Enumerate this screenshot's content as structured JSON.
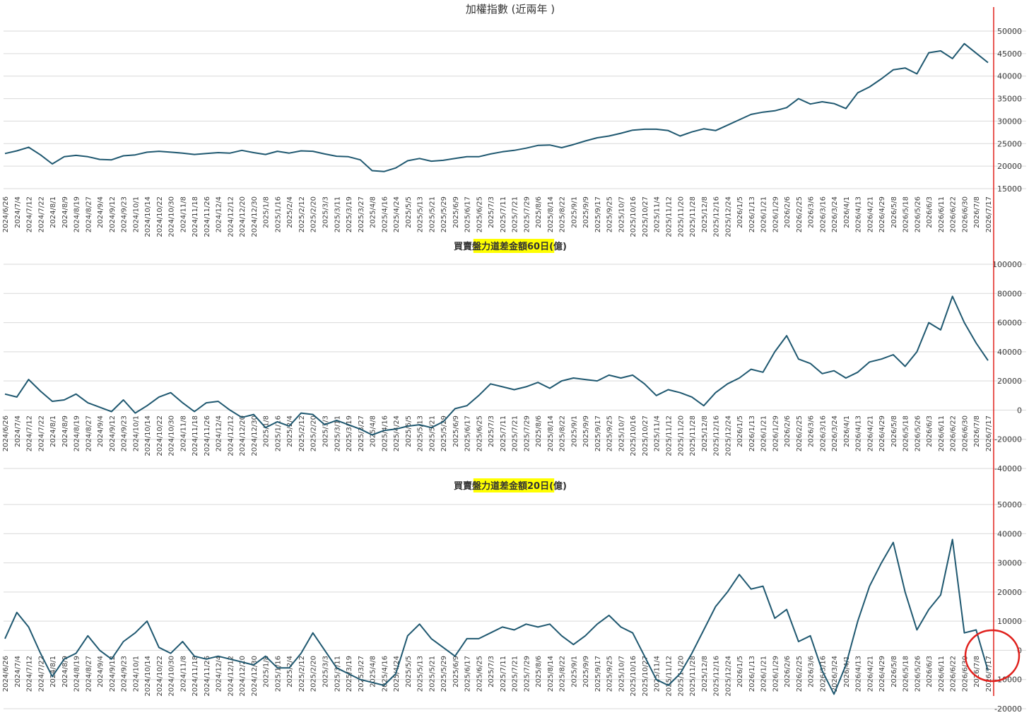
{
  "colors": {
    "line": "#1f5870",
    "grid": "#d9d9d9",
    "tick_text": "#3a3a3a",
    "marker": "#e0201c",
    "title_highlight": "#ffff00",
    "background": "#ffffff"
  },
  "chart_data": [
    {
      "type": "line",
      "title": "加權指數 (近兩年 )",
      "title_highlight": false,
      "xlabel": "",
      "ylabel": "",
      "ylim": [
        15000,
        50000
      ],
      "yticks": [
        15000,
        20000,
        25000,
        30000,
        35000,
        40000,
        45000,
        50000
      ],
      "grid": true,
      "legend": "none",
      "x_tick_labels": [
        "2024/6/26",
        "2024/7/4",
        "2024/7/12",
        "2024/7/22",
        "2024/8/1",
        "2024/8/9",
        "2024/8/19",
        "2024/8/27",
        "2024/9/4",
        "2024/9/12",
        "2024/9/23",
        "2024/10/1",
        "2024/10/14",
        "2024/10/22",
        "2024/10/30",
        "2024/11/8",
        "2024/11/18",
        "2024/11/26",
        "2024/12/4",
        "2024/12/12",
        "2024/12/20",
        "2024/12/30",
        "2025/1/8",
        "2025/1/16",
        "2025/2/4",
        "2025/2/12",
        "2025/2/20",
        "2025/3/3",
        "2025/3/11",
        "2025/3/19",
        "2025/3/27",
        "2025/4/8",
        "2025/4/16",
        "2025/4/24",
        "2025/5/5",
        "2025/5/13",
        "2025/5/21",
        "2025/5/29",
        "2025/6/9",
        "2025/6/17",
        "2025/6/25",
        "2025/7/3",
        "2025/7/11",
        "2025/7/21",
        "2025/7/29",
        "2025/8/6",
        "2025/8/14",
        "2025/8/22",
        "2025/9/1",
        "2025/9/9",
        "2025/9/17",
        "2025/9/25",
        "2025/10/7",
        "2025/10/16",
        "2025/10/27",
        "2025/11/4",
        "2025/11/12",
        "2025/11/20",
        "2025/11/28",
        "2025/12/8",
        "2025/12/16",
        "2025/12/24",
        "2026/1/5",
        "2026/1/13",
        "2026/1/21",
        "2026/1/29",
        "2026/2/6",
        "2026/2/25",
        "2026/3/6",
        "2026/3/16",
        "2026/3/24",
        "2026/4/1",
        "2026/4/13",
        "2026/4/21",
        "2026/4/29",
        "2026/5/8",
        "2026/5/18",
        "2026/5/26",
        "2026/6/3",
        "2026/6/11",
        "2026/6/22",
        "2026/6/30",
        "2026/7/8",
        "2026/7/17"
      ],
      "series": [
        {
          "x_index": [
            0,
            1,
            2,
            3,
            4,
            5,
            6,
            7,
            8,
            9,
            10,
            11,
            12,
            13,
            14,
            15,
            16,
            17,
            18,
            19,
            20,
            21,
            22,
            23,
            24,
            25,
            26,
            27,
            28,
            29,
            30,
            31,
            32,
            33,
            34,
            35,
            36,
            37,
            38,
            39,
            40,
            41,
            42,
            43,
            44,
            45,
            46,
            47,
            48,
            49,
            50,
            51,
            52,
            53,
            54,
            55,
            56,
            57,
            58,
            59,
            60,
            61,
            62,
            63,
            64,
            65,
            66,
            67,
            68,
            69,
            70,
            71,
            72,
            73,
            74,
            75,
            76,
            77,
            78,
            79,
            80,
            81,
            82,
            83
          ],
          "values": [
            22800,
            23400,
            24200,
            22500,
            20500,
            22100,
            22400,
            22100,
            21500,
            21400,
            22300,
            22500,
            23100,
            23300,
            23100,
            22900,
            22600,
            22800,
            23000,
            22900,
            23500,
            23000,
            22600,
            23300,
            22900,
            23400,
            23300,
            22700,
            22200,
            22100,
            21400,
            19000,
            18800,
            19600,
            21200,
            21700,
            21100,
            21300,
            21700,
            22100,
            22100,
            22700,
            23200,
            23500,
            24000,
            24600,
            24700,
            24100,
            24800,
            25600,
            26300,
            26700,
            27300,
            28000,
            28200,
            28200,
            27900,
            26700,
            27600,
            28300,
            27900,
            29100,
            30300,
            31500,
            32000,
            32300,
            33000,
            35000,
            33800,
            34300,
            33900,
            32800,
            36300,
            37600,
            39400,
            41400,
            41800,
            40500,
            45200,
            45600,
            43900,
            47200,
            45100,
            43000
          ]
        }
      ]
    },
    {
      "type": "line",
      "title": "買賣盤力道差金額60日(億)",
      "title_highlight": true,
      "xlabel": "",
      "ylabel": "",
      "ylim": [
        -40000,
        100000
      ],
      "yticks": [
        -40000,
        -20000,
        0,
        20000,
        40000,
        60000,
        80000,
        100000
      ],
      "grid": true,
      "legend": "none",
      "x_tick_labels": [
        "2024/6/26",
        "2024/7/4",
        "2024/7/12",
        "2024/7/22",
        "2024/8/1",
        "2024/8/9",
        "2024/8/19",
        "2024/8/27",
        "2024/9/4",
        "2024/9/12",
        "2024/9/23",
        "2024/10/1",
        "2024/10/14",
        "2024/10/22",
        "2024/10/30",
        "2024/11/8",
        "2024/11/18",
        "2024/11/26",
        "2024/12/4",
        "2024/12/12",
        "2024/12/20",
        "2024/12/30",
        "2025/1/8",
        "2025/1/16",
        "2025/2/4",
        "2025/2/12",
        "2025/2/20",
        "2025/3/3",
        "2025/3/11",
        "2025/3/19",
        "2025/3/27",
        "2025/4/8",
        "2025/4/16",
        "2025/4/24",
        "2025/5/5",
        "2025/5/13",
        "2025/5/21",
        "2025/5/29",
        "2025/6/9",
        "2025/6/17",
        "2025/6/25",
        "2025/7/3",
        "2025/7/11",
        "2025/7/21",
        "2025/7/29",
        "2025/8/6",
        "2025/8/14",
        "2025/8/22",
        "2025/9/1",
        "2025/9/9",
        "2025/9/17",
        "2025/9/25",
        "2025/10/7",
        "2025/10/16",
        "2025/10/27",
        "2025/11/4",
        "2025/11/12",
        "2025/11/20",
        "2025/11/28",
        "2025/12/8",
        "2025/12/16",
        "2025/12/24",
        "2026/1/5",
        "2026/1/13",
        "2026/1/21",
        "2026/1/29",
        "2026/2/6",
        "2026/2/25",
        "2026/3/6",
        "2026/3/16",
        "2026/3/24",
        "2026/4/1",
        "2026/4/13",
        "2026/4/21",
        "2026/4/29",
        "2026/5/8",
        "2026/5/18",
        "2026/5/26",
        "2026/6/3",
        "2026/6/11",
        "2026/6/22",
        "2026/6/30",
        "2026/7/8",
        "2026/7/17"
      ],
      "series": [
        {
          "x_index": [
            0,
            1,
            2,
            3,
            4,
            5,
            6,
            7,
            8,
            9,
            10,
            11,
            12,
            13,
            14,
            15,
            16,
            17,
            18,
            19,
            20,
            21,
            22,
            23,
            24,
            25,
            26,
            27,
            28,
            29,
            30,
            31,
            32,
            33,
            34,
            35,
            36,
            37,
            38,
            39,
            40,
            41,
            42,
            43,
            44,
            45,
            46,
            47,
            48,
            49,
            50,
            51,
            52,
            53,
            54,
            55,
            56,
            57,
            58,
            59,
            60,
            61,
            62,
            63,
            64,
            65,
            66,
            67,
            68,
            69,
            70,
            71,
            72,
            73,
            74,
            75,
            76,
            77,
            78,
            79,
            80,
            81,
            82,
            83
          ],
          "values": [
            11000,
            9000,
            21000,
            13000,
            6000,
            7000,
            11000,
            5000,
            2000,
            -1000,
            7000,
            -2000,
            3000,
            9000,
            12000,
            5000,
            -1000,
            5000,
            6000,
            0,
            -5000,
            -3000,
            -12000,
            -8000,
            -11000,
            -2000,
            -3000,
            -10000,
            -7000,
            -10000,
            -13000,
            -17000,
            -14000,
            -13000,
            -11000,
            -10000,
            -12000,
            -8000,
            1000,
            3000,
            10000,
            18000,
            16000,
            14000,
            16000,
            19000,
            15000,
            20000,
            22000,
            21000,
            20000,
            24000,
            22000,
            24000,
            18000,
            10000,
            14000,
            12000,
            9000,
            3000,
            12000,
            18000,
            22000,
            28000,
            26000,
            40000,
            51000,
            35000,
            32000,
            25000,
            27000,
            22000,
            26000,
            33000,
            35000,
            38000,
            30000,
            40000,
            60000,
            55000,
            78000,
            60000,
            46000,
            34000
          ]
        }
      ]
    },
    {
      "type": "line",
      "title": "買賣盤力道差金額20日(億)",
      "title_highlight": true,
      "xlabel": "",
      "ylabel": "",
      "ylim": [
        -20000,
        50000
      ],
      "yticks": [
        -20000,
        -10000,
        0,
        10000,
        20000,
        30000,
        40000,
        50000
      ],
      "grid": true,
      "legend": "none",
      "x_tick_labels": [
        "2024/6/26",
        "2024/7/4",
        "2024/7/12",
        "2024/7/22",
        "2024/8/1",
        "2024/8/9",
        "2024/8/19",
        "2024/8/27",
        "2024/9/4",
        "2024/9/12",
        "2024/9/23",
        "2024/10/1",
        "2024/10/14",
        "2024/10/22",
        "2024/10/30",
        "2024/11/8",
        "2024/11/18",
        "2024/11/26",
        "2024/12/4",
        "2024/12/12",
        "2024/12/20",
        "2024/12/30",
        "2025/1/8",
        "2025/1/16",
        "2025/2/4",
        "2025/2/12",
        "2025/2/20",
        "2025/3/3",
        "2025/3/11",
        "2025/3/19",
        "2025/3/27",
        "2025/4/8",
        "2025/4/16",
        "2025/4/24",
        "2025/5/5",
        "2025/5/13",
        "2025/5/21",
        "2025/5/29",
        "2025/6/9",
        "2025/6/17",
        "2025/6/25",
        "2025/7/3",
        "2025/7/11",
        "2025/7/21",
        "2025/7/29",
        "2025/8/6",
        "2025/8/14",
        "2025/8/22",
        "2025/9/1",
        "2025/9/9",
        "2025/9/17",
        "2025/9/25",
        "2025/10/7",
        "2025/10/16",
        "2025/10/27",
        "2025/11/4",
        "2025/11/12",
        "2025/11/20",
        "2025/11/28",
        "2025/12/8",
        "2025/12/16",
        "2025/12/24",
        "2026/1/5",
        "2026/1/13",
        "2026/1/21",
        "2026/1/29",
        "2026/2/6",
        "2026/2/25",
        "2026/3/6",
        "2026/3/16",
        "2026/3/24",
        "2026/4/1",
        "2026/4/13",
        "2026/4/21",
        "2026/4/29",
        "2026/5/8",
        "2026/5/18",
        "2026/5/26",
        "2026/6/3",
        "2026/6/11",
        "2026/6/22",
        "2026/6/30",
        "2026/7/8",
        "2026/7/17"
      ],
      "series": [
        {
          "x_index": [
            0,
            1,
            2,
            3,
            4,
            5,
            6,
            7,
            8,
            9,
            10,
            11,
            12,
            13,
            14,
            15,
            16,
            17,
            18,
            19,
            20,
            21,
            22,
            23,
            24,
            25,
            26,
            27,
            28,
            29,
            30,
            31,
            32,
            33,
            34,
            35,
            36,
            37,
            38,
            39,
            40,
            41,
            42,
            43,
            44,
            45,
            46,
            47,
            48,
            49,
            50,
            51,
            52,
            53,
            54,
            55,
            56,
            57,
            58,
            59,
            60,
            61,
            62,
            63,
            64,
            65,
            66,
            67,
            68,
            69,
            70,
            71,
            72,
            73,
            74,
            75,
            76,
            77,
            78,
            79,
            80,
            81,
            82,
            83
          ],
          "values": [
            4000,
            13000,
            8000,
            -1000,
            -9000,
            -3000,
            -1000,
            5000,
            0,
            -3000,
            3000,
            6000,
            10000,
            1000,
            -1000,
            3000,
            -2000,
            -3000,
            -2000,
            -3000,
            -4000,
            -5000,
            -2000,
            -6000,
            -6000,
            -1000,
            6000,
            0,
            -6000,
            -8000,
            -10000,
            -11000,
            -12000,
            -8000,
            5000,
            9000,
            4000,
            1000,
            -2000,
            4000,
            4000,
            6000,
            8000,
            7000,
            9000,
            8000,
            9000,
            5000,
            2000,
            5000,
            9000,
            12000,
            8000,
            6000,
            -2000,
            -10000,
            -12000,
            -8000,
            -1000,
            7000,
            15000,
            20000,
            26000,
            21000,
            22000,
            11000,
            14000,
            3000,
            5000,
            -7000,
            -15000,
            -5000,
            10000,
            22000,
            30000,
            37000,
            20000,
            7000,
            14000,
            19000,
            38000,
            6000,
            7000,
            -7000
          ]
        }
      ]
    }
  ]
}
